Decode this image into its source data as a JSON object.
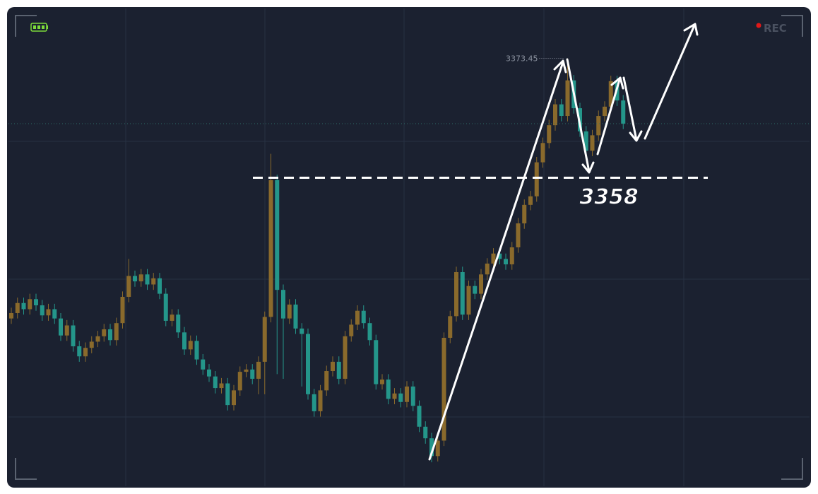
{
  "chart_data": {
    "type": "candlestick",
    "rec_label": "REC",
    "up_color": "#8a6a2c",
    "down_color": "#24968a",
    "ylim": [
      3318.1,
      3379.9
    ],
    "annotations": {
      "high": 3373.45,
      "level": 3358
    },
    "open": [
      3339.8,
      3340.5,
      3341.8,
      3341.0,
      3342.3,
      3341.5,
      3340.2,
      3341.0,
      3339.8,
      3337.6,
      3338.9,
      3336.2,
      3334.9,
      3336.0,
      3336.8,
      3337.5,
      3338.4,
      3337.0,
      3339.2,
      3342.6,
      3345.3,
      3344.6,
      3345.5,
      3344.2,
      3345.0,
      3343.0,
      3339.5,
      3340.3,
      3338.0,
      3335.8,
      3336.9,
      3334.5,
      3333.2,
      3332.3,
      3330.8,
      3331.4,
      3328.6,
      3330.5,
      3332.9,
      3333.2,
      3332.0,
      3334.2,
      3340.0,
      3357.7,
      3343.5,
      3339.8,
      3341.6,
      3338.5,
      3337.8,
      3330.0,
      3327.8,
      3330.5,
      3333.0,
      3334.2,
      3332.0,
      3337.5,
      3339.0,
      3340.8,
      3339.2,
      3337.0,
      3331.3,
      3331.9,
      3329.4,
      3330.1,
      3329.0,
      3331.0,
      3328.5,
      3325.8,
      3324.3,
      3322.0,
      3324.0,
      3337.3,
      3340.1,
      3345.8,
      3340.3,
      3344.0,
      3343.0,
      3345.5,
      3346.9,
      3348.2,
      3347.5,
      3346.8,
      3349.0,
      3352.1,
      3354.5,
      3355.6,
      3360.0,
      3362.5,
      3364.8,
      3367.5,
      3366.0,
      3370.6,
      3367.0,
      3364.0,
      3361.5,
      3363.5,
      3366.0,
      3367.2,
      3370.5,
      3368.0
    ],
    "high": [
      3341.2,
      3342.5,
      3342.5,
      3343.0,
      3343.0,
      3342.2,
      3341.7,
      3341.7,
      3340.5,
      3339.6,
      3339.6,
      3336.9,
      3336.7,
      3337.5,
      3338.2,
      3339.1,
      3339.1,
      3339.9,
      3343.3,
      3347.5,
      3346.0,
      3346.2,
      3346.2,
      3345.7,
      3345.7,
      3343.7,
      3341.0,
      3341.0,
      3338.7,
      3337.6,
      3337.6,
      3335.2,
      3333.9,
      3333.0,
      3332.1,
      3332.1,
      3331.2,
      3333.6,
      3333.9,
      3333.9,
      3334.9,
      3340.7,
      3361.1,
      3358.4,
      3344.2,
      3342.3,
      3342.3,
      3339.2,
      3338.5,
      3330.7,
      3331.2,
      3333.7,
      3334.9,
      3334.9,
      3338.2,
      3339.7,
      3341.5,
      3341.5,
      3339.9,
      3337.7,
      3332.6,
      3332.6,
      3330.8,
      3330.8,
      3331.7,
      3331.7,
      3329.2,
      3326.5,
      3325.0,
      3324.7,
      3338.0,
      3340.8,
      3346.5,
      3346.5,
      3344.7,
      3344.7,
      3346.2,
      3347.6,
      3348.9,
      3348.9,
      3348.2,
      3349.7,
      3352.8,
      3355.2,
      3356.3,
      3360.7,
      3363.2,
      3365.5,
      3368.2,
      3368.2,
      3373.45,
      3371.3,
      3367.7,
      3364.7,
      3364.2,
      3366.7,
      3367.9,
      3371.2,
      3371.2,
      3368.7
    ],
    "low": [
      3339.1,
      3339.8,
      3340.3,
      3340.3,
      3340.8,
      3339.5,
      3339.5,
      3339.1,
      3336.9,
      3336.9,
      3335.5,
      3334.2,
      3334.2,
      3335.3,
      3336.1,
      3336.8,
      3336.3,
      3336.3,
      3338.5,
      3341.9,
      3343.9,
      3343.9,
      3343.5,
      3343.5,
      3342.3,
      3338.8,
      3338.8,
      3337.3,
      3335.1,
      3335.1,
      3333.8,
      3332.5,
      3331.6,
      3330.1,
      3330.1,
      3327.9,
      3327.9,
      3329.8,
      3332.2,
      3331.3,
      3330.0,
      3330.0,
      3339.3,
      3332.6,
      3332.0,
      3339.1,
      3337.8,
      3331.0,
      3329.3,
      3327.1,
      3327.1,
      3329.8,
      3332.3,
      3331.3,
      3331.3,
      3336.8,
      3338.3,
      3338.5,
      3336.3,
      3330.6,
      3330.6,
      3328.7,
      3328.7,
      3328.3,
      3328.3,
      3327.8,
      3325.1,
      3323.6,
      3321.2,
      3321.3,
      3323.3,
      3336.6,
      3339.4,
      3339.6,
      3339.6,
      3342.3,
      3342.3,
      3344.8,
      3346.2,
      3346.8,
      3346.1,
      3346.1,
      3348.3,
      3351.4,
      3353.8,
      3354.9,
      3359.3,
      3361.8,
      3364.1,
      3365.3,
      3365.3,
      3366.3,
      3363.3,
      3360.8,
      3360.8,
      3362.8,
      3365.3,
      3366.5,
      3367.3,
      3364.3
    ],
    "close": [
      3340.5,
      3341.8,
      3341.0,
      3342.3,
      3341.5,
      3340.2,
      3341.0,
      3339.8,
      3337.6,
      3338.9,
      3336.2,
      3334.9,
      3336.0,
      3336.8,
      3337.5,
      3338.4,
      3337.0,
      3339.2,
      3342.6,
      3345.3,
      3344.6,
      3345.5,
      3344.2,
      3345.0,
      3343.0,
      3339.5,
      3340.3,
      3338.0,
      3335.8,
      3336.9,
      3334.5,
      3333.2,
      3332.3,
      3330.8,
      3331.4,
      3328.6,
      3330.5,
      3332.9,
      3333.2,
      3332.0,
      3334.2,
      3340.0,
      3357.7,
      3343.5,
      3339.8,
      3341.6,
      3338.5,
      3337.8,
      3330.0,
      3327.8,
      3330.5,
      3333.0,
      3334.2,
      3332.0,
      3337.5,
      3339.0,
      3340.8,
      3339.2,
      3337.0,
      3331.3,
      3331.9,
      3329.4,
      3330.1,
      3329.0,
      3331.0,
      3328.5,
      3325.8,
      3324.3,
      3322.0,
      3324.0,
      3337.3,
      3340.1,
      3345.8,
      3340.3,
      3344.0,
      3343.0,
      3345.5,
      3346.9,
      3348.2,
      3347.5,
      3346.8,
      3349.0,
      3352.1,
      3354.5,
      3355.6,
      3360.0,
      3362.5,
      3364.8,
      3367.5,
      3366.0,
      3370.6,
      3367.0,
      3364.0,
      3361.5,
      3363.5,
      3366.0,
      3367.2,
      3370.5,
      3368.0,
      3365.0
    ]
  }
}
